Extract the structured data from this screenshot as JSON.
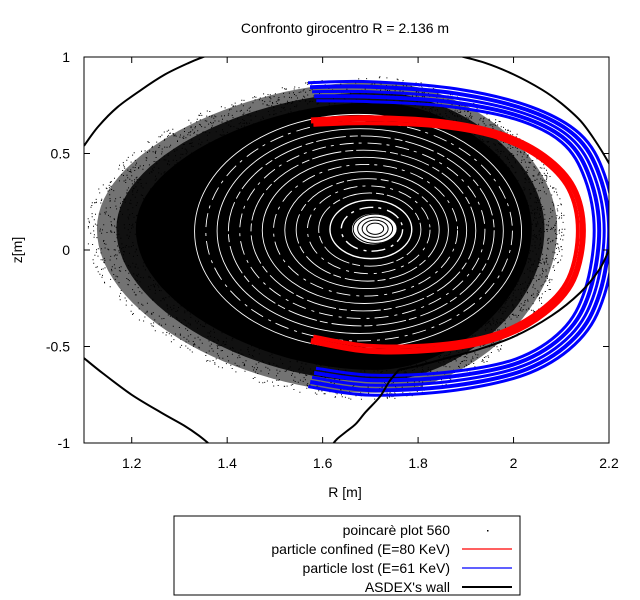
{
  "chart_data": {
    "type": "scatter",
    "title": "Confronto girocentro R = 2.136 m",
    "xlabel": "R [m]",
    "ylabel": "z[m]",
    "xlim": [
      1.1,
      2.2
    ],
    "ylim": [
      -1,
      1
    ],
    "xticks": [
      "1.2",
      "1.4",
      "1.6",
      "1.8",
      "2",
      "2.2"
    ],
    "xtick_values": [
      1.2,
      1.4,
      1.6,
      1.8,
      2.0,
      2.2
    ],
    "yticks": [
      "1",
      "0.5",
      "0",
      "-0.5",
      "-1"
    ],
    "ytick_values": [
      1,
      0.5,
      0,
      -0.5,
      -1
    ],
    "grid": false,
    "legend_position": "bottom-outside",
    "series": [
      {
        "name": "poincarè plot 560",
        "kind": "points",
        "color": "#000000",
        "magnetic_axis": [
          1.71,
          0.11
        ],
        "outer_extent": {
          "R": [
            1.16,
            2.07
          ],
          "z": [
            -0.74,
            0.87
          ]
        }
      },
      {
        "name": "particle confined (E=80 KeV)",
        "kind": "line",
        "color": "#ff0000",
        "x": [
          1.578,
          1.7,
          1.85,
          1.97,
          2.06,
          2.12,
          2.14,
          2.12,
          2.06,
          1.97,
          1.85,
          1.7,
          1.578
        ],
        "y": [
          -0.46,
          -0.51,
          -0.5,
          -0.44,
          -0.32,
          -0.15,
          0.1,
          0.32,
          0.48,
          0.59,
          0.65,
          0.67,
          0.66
        ]
      },
      {
        "name": "particle lost (E=61 KeV)",
        "kind": "line",
        "color": "#0000ff",
        "x": [
          1.578,
          1.7,
          1.87,
          2.02,
          2.12,
          2.17,
          2.19,
          2.17,
          2.12,
          2.02,
          1.87,
          1.7,
          1.578
        ],
        "y": [
          -0.66,
          -0.7,
          -0.68,
          -0.6,
          -0.44,
          -0.22,
          0.1,
          0.38,
          0.58,
          0.71,
          0.79,
          0.82,
          0.82
        ]
      },
      {
        "name": "ASDEX's wall",
        "kind": "line",
        "color": "#000000",
        "segments": [
          {
            "x": [
              1.1,
              1.13,
              1.17,
              1.22,
              1.27,
              1.32,
              1.35,
              1.37
            ],
            "y": [
              0.54,
              0.64,
              0.74,
              0.83,
              0.91,
              0.97,
              1.0,
              1.02
            ]
          },
          {
            "x": [
              1.88,
              1.94,
              2.0,
              2.06,
              2.1,
              2.14,
              2.17,
              2.2,
              2.21
            ],
            "y": [
              1.01,
              0.97,
              0.91,
              0.83,
              0.76,
              0.67,
              0.57,
              0.45,
              0.4
            ]
          },
          {
            "x": [
              2.2,
              2.18,
              2.14,
              2.08,
              2.0,
              1.92,
              1.86,
              1.8,
              1.76
            ],
            "y": [
              0.0,
              -0.1,
              -0.22,
              -0.34,
              -0.45,
              -0.52,
              -0.56,
              -0.6,
              -0.62
            ]
          },
          {
            "x": [
              1.76,
              1.74,
              1.72,
              1.69,
              1.67,
              1.65,
              1.63,
              1.62
            ],
            "y": [
              -0.62,
              -0.68,
              -0.76,
              -0.84,
              -0.9,
              -0.94,
              -0.98,
              -1.01
            ]
          },
          {
            "x": [
              1.1,
              1.14,
              1.2,
              1.26,
              1.31,
              1.34,
              1.36
            ],
            "y": [
              -0.56,
              -0.64,
              -0.75,
              -0.84,
              -0.91,
              -0.96,
              -1.0
            ]
          }
        ]
      }
    ]
  }
}
